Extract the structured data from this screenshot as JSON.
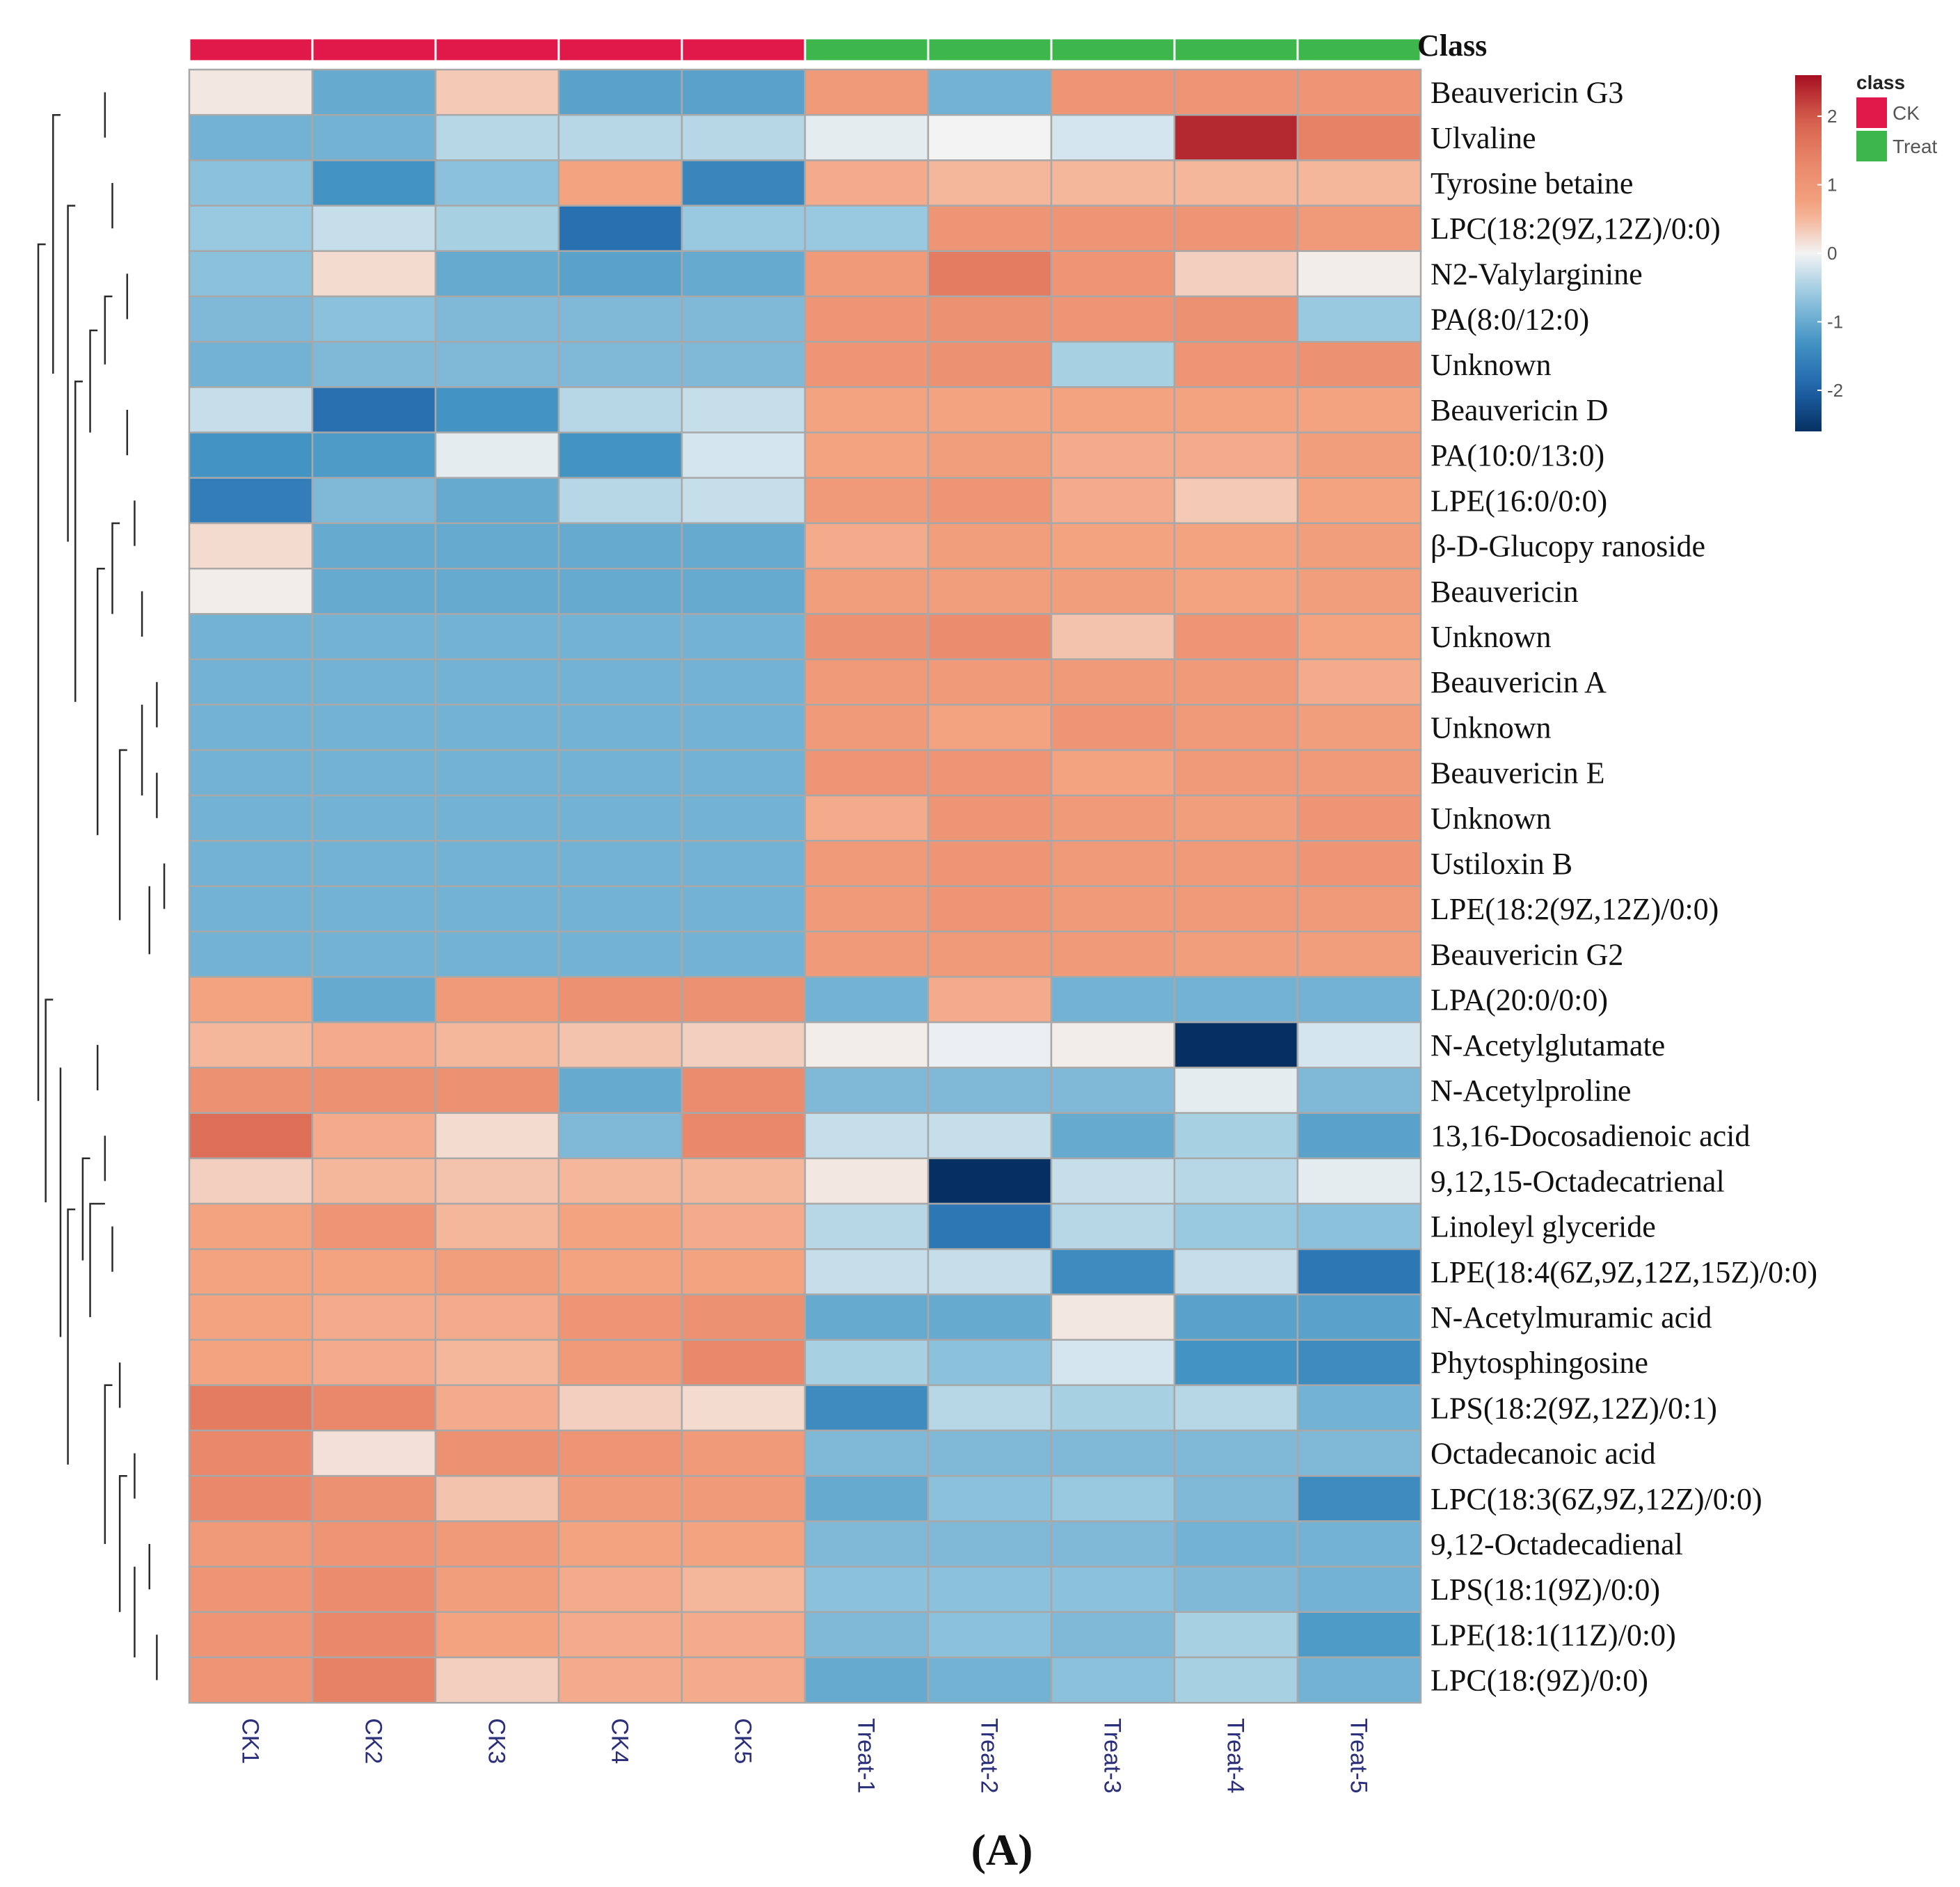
{
  "chart_data": {
    "type": "heatmap",
    "annotation_title": "Class",
    "caption": "(A)",
    "columns": [
      "CK1",
      "CK2",
      "CK3",
      "CK4",
      "CK5",
      "Treat-1",
      "Treat-2",
      "Treat-3",
      "Treat-4",
      "Treat-5"
    ],
    "column_class": [
      "CK",
      "CK",
      "CK",
      "CK",
      "CK",
      "Treat",
      "Treat",
      "Treat",
      "Treat",
      "Treat"
    ],
    "rows": [
      "Beauvericin G3",
      "Ulvaline",
      "Tyrosine betaine",
      "LPC(18:2(9Z,12Z)/0:0)",
      "N2-Valylarginine",
      "PA(8:0/12:0)",
      "Unknown",
      "Beauvericin D",
      "PA(10:0/13:0)",
      "LPE(16:0/0:0)",
      "β-D-Glucopy ranoside",
      "Beauvericin",
      "Unknown",
      "Beauvericin A",
      "Unknown",
      "Beauvericin E",
      "Unknown",
      "Ustiloxin B",
      "LPE(18:2(9Z,12Z)/0:0)",
      "Beauvericin G2",
      "LPA(20:0/0:0)",
      "N-Acetylglutamate",
      "N-Acetylproline",
      "13,16-Docosadienoic acid",
      "9,12,15-Octadecatrienal",
      "Linoleyl glyceride",
      "LPE(18:4(6Z,9Z,12Z,15Z)/0:0)",
      "N-Acetylmuramic acid",
      "Phytosphingosine",
      "LPS(18:2(9Z,12Z)/0:1)",
      "Octadecanoic acid",
      "LPC(18:3(6Z,9Z,12Z)/0:0)",
      "9,12-Octadecadienal",
      "LPS(18:1(9Z)/0:0)",
      "LPE(18:1(11Z)/0:0)",
      "LPC(18:(9Z)/0:0)"
    ],
    "values": [
      [
        0.1,
        -1.0,
        0.35,
        -1.1,
        -1.1,
        0.9,
        -0.9,
        1.0,
        1.0,
        1.0
      ],
      [
        -0.9,
        -0.9,
        -0.4,
        -0.4,
        -0.4,
        -0.1,
        0.0,
        -0.2,
        2.4,
        1.4
      ],
      [
        -0.7,
        -1.3,
        -0.7,
        0.7,
        -1.5,
        0.6,
        0.5,
        0.5,
        0.5,
        0.5
      ],
      [
        -0.6,
        -0.3,
        -0.5,
        -1.8,
        -0.6,
        -0.6,
        1.0,
        1.0,
        1.0,
        0.9
      ],
      [
        -0.7,
        0.2,
        -1.0,
        -1.1,
        -1.0,
        0.9,
        1.5,
        1.0,
        0.3,
        0.05
      ],
      [
        -0.8,
        -0.7,
        -0.8,
        -0.8,
        -0.8,
        1.0,
        1.1,
        1.0,
        1.1,
        -0.6
      ],
      [
        -0.9,
        -0.8,
        -0.8,
        -0.8,
        -0.8,
        1.0,
        1.1,
        -0.5,
        1.0,
        1.1
      ],
      [
        -0.3,
        -1.8,
        -1.3,
        -0.4,
        -0.3,
        0.7,
        0.7,
        0.7,
        0.7,
        0.7
      ],
      [
        -1.3,
        -1.2,
        -0.1,
        -1.3,
        -0.2,
        0.7,
        0.8,
        0.6,
        0.6,
        0.8
      ],
      [
        -1.6,
        -0.8,
        -1.0,
        -0.4,
        -0.3,
        0.9,
        1.0,
        0.6,
        0.35,
        0.7
      ],
      [
        0.2,
        -1.0,
        -1.0,
        -1.0,
        -1.0,
        0.6,
        0.8,
        0.7,
        0.7,
        0.8
      ],
      [
        0.05,
        -1.0,
        -1.0,
        -1.0,
        -1.0,
        0.8,
        0.8,
        0.8,
        0.7,
        0.8
      ],
      [
        -0.9,
        -0.9,
        -0.9,
        -0.9,
        -0.9,
        1.1,
        1.2,
        0.4,
        1.0,
        0.7
      ],
      [
        -0.9,
        -0.9,
        -0.9,
        -0.9,
        -0.9,
        0.9,
        0.9,
        0.9,
        0.9,
        0.6
      ],
      [
        -0.9,
        -0.9,
        -0.9,
        -0.9,
        -0.9,
        0.9,
        0.7,
        1.0,
        0.9,
        0.8
      ],
      [
        -0.9,
        -0.9,
        -0.9,
        -0.9,
        -0.9,
        1.0,
        1.0,
        0.7,
        0.9,
        0.9
      ],
      [
        -0.9,
        -0.9,
        -0.9,
        -0.9,
        -0.9,
        0.6,
        1.0,
        0.9,
        0.8,
        1.0
      ],
      [
        -0.9,
        -0.9,
        -0.9,
        -0.9,
        -0.9,
        0.9,
        1.0,
        0.9,
        0.9,
        1.0
      ],
      [
        -0.9,
        -0.9,
        -0.9,
        -0.9,
        -0.9,
        0.9,
        1.0,
        0.9,
        0.9,
        0.9
      ],
      [
        -0.9,
        -0.9,
        -0.9,
        -0.9,
        -0.9,
        0.9,
        0.9,
        0.9,
        0.8,
        0.8
      ],
      [
        0.7,
        -1.0,
        0.9,
        1.1,
        1.1,
        -0.9,
        0.6,
        -0.9,
        -0.9,
        -0.9
      ],
      [
        0.5,
        0.6,
        0.5,
        0.4,
        0.3,
        0.05,
        -0.05,
        0.05,
        -2.6,
        -0.2
      ],
      [
        1.1,
        1.1,
        1.1,
        -1.0,
        1.2,
        -0.8,
        -0.8,
        -0.8,
        -0.1,
        -0.8
      ],
      [
        1.7,
        0.6,
        0.2,
        -0.8,
        1.3,
        -0.3,
        -0.3,
        -1.0,
        -0.5,
        -1.1
      ],
      [
        0.3,
        0.5,
        0.4,
        0.5,
        0.5,
        0.1,
        -2.6,
        -0.3,
        -0.4,
        -0.1
      ],
      [
        0.7,
        1.0,
        0.5,
        0.7,
        0.6,
        -0.4,
        -1.7,
        -0.4,
        -0.6,
        -0.7
      ],
      [
        0.7,
        0.7,
        0.8,
        0.7,
        0.7,
        -0.3,
        -0.3,
        -1.4,
        -0.3,
        -1.7
      ],
      [
        0.7,
        0.6,
        0.6,
        1.0,
        1.1,
        -1.0,
        -1.0,
        0.1,
        -1.1,
        -1.1
      ],
      [
        0.7,
        0.6,
        0.5,
        0.9,
        1.3,
        -0.5,
        -0.7,
        -0.2,
        -1.3,
        -1.4
      ],
      [
        1.5,
        1.3,
        0.6,
        0.3,
        0.2,
        -1.4,
        -0.4,
        -0.5,
        -0.4,
        -0.9
      ],
      [
        1.3,
        0.15,
        1.1,
        1.0,
        0.9,
        -0.8,
        -0.8,
        -0.8,
        -0.8,
        -0.8
      ],
      [
        1.3,
        1.1,
        0.4,
        0.9,
        0.9,
        -1.0,
        -0.7,
        -0.6,
        -0.8,
        -1.4
      ],
      [
        0.9,
        1.0,
        0.9,
        0.7,
        0.7,
        -0.8,
        -0.8,
        -0.8,
        -0.9,
        -0.9
      ],
      [
        1.0,
        1.2,
        0.8,
        0.6,
        0.5,
        -0.7,
        -0.7,
        -0.7,
        -0.8,
        -0.9
      ],
      [
        1.0,
        1.3,
        0.7,
        0.6,
        0.6,
        -0.8,
        -0.7,
        -0.8,
        -0.5,
        -1.2
      ],
      [
        1.0,
        1.4,
        0.3,
        0.6,
        0.6,
        -1.0,
        -0.9,
        -0.7,
        -0.5,
        -0.9
      ]
    ],
    "color_scale": {
      "range": [
        -2.6,
        2.6
      ],
      "ticks": [
        2,
        1,
        0,
        -1,
        -2
      ],
      "low": "#053061",
      "mid": "#f3f3f3",
      "high": "#a50f22"
    },
    "dendrogram": [
      {
        "y": [
          0,
          1
        ],
        "x": [
          0.55,
          0.55
        ]
      },
      {
        "y": [
          2,
          3
        ],
        "x": [
          0.5,
          0.5
        ]
      },
      {
        "y": [
          4,
          5
        ],
        "x": [
          0.4,
          0.4
        ]
      },
      {
        "y": [
          4.5,
          6
        ],
        "x": [
          0.5,
          0.55
        ]
      },
      {
        "y": [
          7,
          8
        ],
        "x": [
          0.4,
          0.4
        ]
      },
      {
        "y": [
          5.25,
          7.5
        ],
        "x": [
          0.6,
          0.65
        ]
      },
      {
        "y": [
          9,
          10
        ],
        "x": [
          0.35,
          0.35
        ]
      },
      {
        "y": [
          11,
          12
        ],
        "x": [
          0.3,
          0.3
        ]
      },
      {
        "y": [
          9.5,
          11.5
        ],
        "x": [
          0.45,
          0.5
        ]
      },
      {
        "y": [
          13,
          14
        ],
        "x": [
          0.2,
          0.2
        ]
      },
      {
        "y": [
          15,
          16
        ],
        "x": [
          0.2,
          0.2
        ]
      },
      {
        "y": [
          13.5,
          15.5
        ],
        "x": [
          0.3,
          0.3
        ]
      },
      {
        "y": [
          17,
          18
        ],
        "x": [
          0.15,
          0.15
        ]
      },
      {
        "y": [
          17.5,
          19
        ],
        "x": [
          0.25,
          0.25
        ]
      },
      {
        "y": [
          14.5,
          18.25
        ],
        "x": [
          0.4,
          0.45
        ]
      },
      {
        "y": [
          10.5,
          16.375
        ],
        "x": [
          0.55,
          0.6
        ]
      },
      {
        "y": [
          6.375,
          13.4375
        ],
        "x": [
          0.7,
          0.75
        ]
      },
      {
        "y": [
          2.5,
          9.90625
        ],
        "x": [
          0.75,
          0.8
        ]
      },
      {
        "y": [
          0.5,
          6.203125
        ],
        "x": [
          0.85,
          0.9
        ]
      },
      {
        "y": [
          21,
          22
        ],
        "x": [
          0.6,
          0.6
        ]
      },
      {
        "y": [
          23,
          24
        ],
        "x": [
          0.55,
          0.55
        ]
      },
      {
        "y": [
          25,
          26
        ],
        "x": [
          0.5,
          0.5
        ]
      },
      {
        "y": [
          24.5,
          27
        ],
        "x": [
          0.55,
          0.65
        ]
      },
      {
        "y": [
          23.5,
          25.75
        ],
        "x": [
          0.65,
          0.7
        ]
      },
      {
        "y": [
          28,
          29
        ],
        "x": [
          0.45,
          0.45
        ]
      },
      {
        "y": [
          30,
          31
        ],
        "x": [
          0.35,
          0.35
        ]
      },
      {
        "y": [
          32,
          33
        ],
        "x": [
          0.25,
          0.25
        ]
      },
      {
        "y": [
          34,
          35
        ],
        "x": [
          0.2,
          0.2
        ]
      },
      {
        "y": [
          32.5,
          34.5
        ],
        "x": [
          0.35,
          0.35
        ]
      },
      {
        "y": [
          30.5,
          33.5
        ],
        "x": [
          0.4,
          0.45
        ]
      },
      {
        "y": [
          28.5,
          32
        ],
        "x": [
          0.5,
          0.55
        ]
      },
      {
        "y": [
          24.625,
          30.25
        ],
        "x": [
          0.75,
          0.8
        ]
      },
      {
        "y": [
          21.5,
          27.4375
        ],
        "x": [
          0.85,
          0.85
        ]
      },
      {
        "y": [
          20,
          24.46875
        ],
        "x": [
          0.9,
          0.95
        ]
      },
      {
        "y": [
          3.3515625,
          22.234375
        ],
        "x": [
          0.95,
          1.0
        ]
      }
    ],
    "legend": {
      "title": "class",
      "items": [
        {
          "label": "CK",
          "color": "#e0194a"
        },
        {
          "label": "Treat",
          "color": "#3db64b"
        }
      ]
    }
  }
}
